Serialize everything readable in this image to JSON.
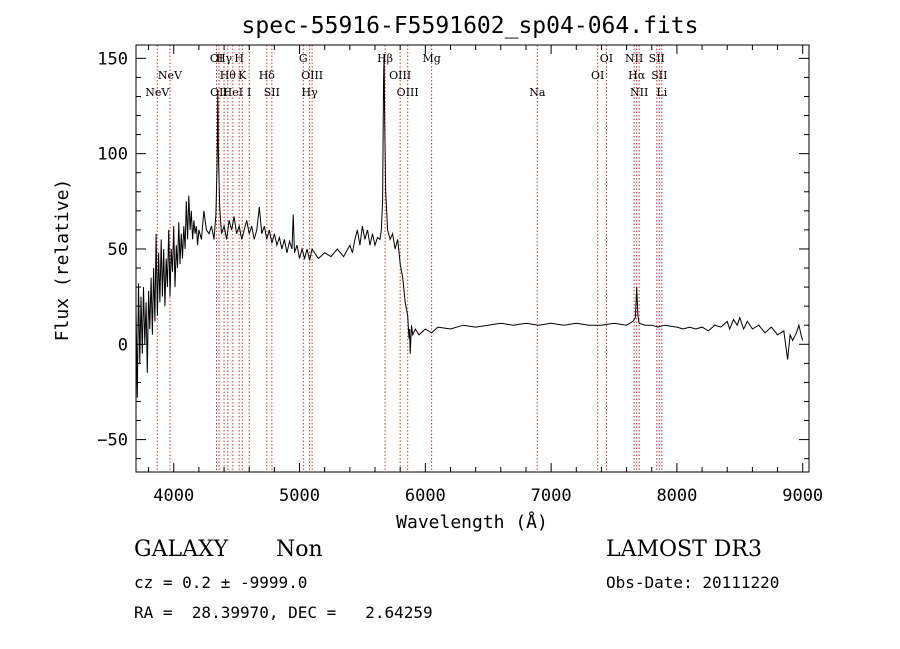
{
  "chart_data": {
    "type": "line",
    "title": "spec-55916-F5591602_sp04-064.fits",
    "xlabel": "Wavelength (Å)",
    "ylabel": "Flux (relative)",
    "xlim": [
      3700,
      9050
    ],
    "ylim": [
      -67,
      157
    ],
    "x_ticks": [
      4000,
      5000,
      6000,
      7000,
      8000,
      9000
    ],
    "y_ticks": [
      -50,
      0,
      50,
      100,
      150
    ],
    "grid": false,
    "line_color": "#000000",
    "marker_color": "#cc3333",
    "series": [
      {
        "name": "spectrum",
        "points": [
          [
            3700,
            20
          ],
          [
            3710,
            -28
          ],
          [
            3720,
            32
          ],
          [
            3730,
            -10
          ],
          [
            3740,
            25
          ],
          [
            3750,
            -5
          ],
          [
            3760,
            30
          ],
          [
            3770,
            0
          ],
          [
            3780,
            22
          ],
          [
            3790,
            -15
          ],
          [
            3800,
            28
          ],
          [
            3810,
            8
          ],
          [
            3820,
            35
          ],
          [
            3830,
            5
          ],
          [
            3840,
            40
          ],
          [
            3850,
            12
          ],
          [
            3860,
            58
          ],
          [
            3870,
            15
          ],
          [
            3880,
            48
          ],
          [
            3890,
            22
          ],
          [
            3900,
            55
          ],
          [
            3910,
            25
          ],
          [
            3920,
            50
          ],
          [
            3930,
            20
          ],
          [
            3940,
            45
          ],
          [
            3950,
            30
          ],
          [
            3960,
            60
          ],
          [
            3970,
            25
          ],
          [
            3980,
            50
          ],
          [
            3990,
            38
          ],
          [
            4000,
            62
          ],
          [
            4010,
            30
          ],
          [
            4020,
            52
          ],
          [
            4030,
            40
          ],
          [
            4040,
            64
          ],
          [
            4050,
            42
          ],
          [
            4060,
            58
          ],
          [
            4070,
            45
          ],
          [
            4080,
            62
          ],
          [
            4090,
            50
          ],
          [
            4100,
            75
          ],
          [
            4110,
            55
          ],
          [
            4120,
            78
          ],
          [
            4130,
            60
          ],
          [
            4140,
            70
          ],
          [
            4150,
            55
          ],
          [
            4160,
            65
          ],
          [
            4170,
            58
          ],
          [
            4180,
            62
          ],
          [
            4190,
            52
          ],
          [
            4200,
            60
          ],
          [
            4220,
            55
          ],
          [
            4240,
            70
          ],
          [
            4260,
            60
          ],
          [
            4280,
            58
          ],
          [
            4300,
            62
          ],
          [
            4320,
            55
          ],
          [
            4335,
            68
          ],
          [
            4345,
            95
          ],
          [
            4350,
            133
          ],
          [
            4355,
            100
          ],
          [
            4365,
            72
          ],
          [
            4380,
            58
          ],
          [
            4400,
            62
          ],
          [
            4420,
            55
          ],
          [
            4440,
            65
          ],
          [
            4460,
            60
          ],
          [
            4480,
            67
          ],
          [
            4500,
            58
          ],
          [
            4520,
            62
          ],
          [
            4540,
            55
          ],
          [
            4560,
            60
          ],
          [
            4580,
            65
          ],
          [
            4600,
            58
          ],
          [
            4620,
            62
          ],
          [
            4640,
            55
          ],
          [
            4660,
            60
          ],
          [
            4680,
            72
          ],
          [
            4700,
            58
          ],
          [
            4720,
            62
          ],
          [
            4740,
            55
          ],
          [
            4760,
            60
          ],
          [
            4780,
            53
          ],
          [
            4800,
            58
          ],
          [
            4820,
            52
          ],
          [
            4840,
            56
          ],
          [
            4860,
            50
          ],
          [
            4880,
            55
          ],
          [
            4900,
            48
          ],
          [
            4920,
            54
          ],
          [
            4940,
            50
          ],
          [
            4950,
            68
          ],
          [
            4960,
            48
          ],
          [
            4980,
            52
          ],
          [
            5000,
            45
          ],
          [
            5020,
            50
          ],
          [
            5040,
            45
          ],
          [
            5060,
            50
          ],
          [
            5080,
            44
          ],
          [
            5100,
            50
          ],
          [
            5150,
            45
          ],
          [
            5200,
            48
          ],
          [
            5250,
            46
          ],
          [
            5300,
            50
          ],
          [
            5350,
            46
          ],
          [
            5400,
            52
          ],
          [
            5420,
            48
          ],
          [
            5440,
            55
          ],
          [
            5460,
            60
          ],
          [
            5480,
            52
          ],
          [
            5500,
            62
          ],
          [
            5520,
            55
          ],
          [
            5540,
            60
          ],
          [
            5560,
            52
          ],
          [
            5580,
            58
          ],
          [
            5600,
            52
          ],
          [
            5620,
            56
          ],
          [
            5640,
            55
          ],
          [
            5650,
            60
          ],
          [
            5660,
            75
          ],
          [
            5668,
            140
          ],
          [
            5672,
            152
          ],
          [
            5676,
            120
          ],
          [
            5685,
            80
          ],
          [
            5700,
            60
          ],
          [
            5720,
            55
          ],
          [
            5740,
            58
          ],
          [
            5760,
            50
          ],
          [
            5780,
            55
          ],
          [
            5800,
            42
          ],
          [
            5820,
            35
          ],
          [
            5840,
            22
          ],
          [
            5860,
            15
          ],
          [
            5870,
            3
          ],
          [
            5875,
            8
          ],
          [
            5880,
            -5
          ],
          [
            5890,
            10
          ],
          [
            5900,
            5
          ],
          [
            5920,
            8
          ],
          [
            5950,
            5
          ],
          [
            6000,
            8
          ],
          [
            6050,
            6
          ],
          [
            6100,
            9
          ],
          [
            6200,
            8
          ],
          [
            6300,
            10
          ],
          [
            6400,
            9
          ],
          [
            6500,
            10
          ],
          [
            6600,
            11
          ],
          [
            6700,
            10
          ],
          [
            6800,
            11
          ],
          [
            6900,
            10
          ],
          [
            7000,
            11
          ],
          [
            7100,
            10
          ],
          [
            7200,
            11
          ],
          [
            7300,
            10
          ],
          [
            7400,
            10
          ],
          [
            7500,
            11
          ],
          [
            7600,
            10
          ],
          [
            7650,
            12
          ],
          [
            7670,
            14
          ],
          [
            7680,
            30
          ],
          [
            7690,
            15
          ],
          [
            7700,
            11
          ],
          [
            7750,
            10
          ],
          [
            7800,
            10
          ],
          [
            7850,
            9
          ],
          [
            7900,
            10
          ],
          [
            8000,
            9
          ],
          [
            8050,
            8
          ],
          [
            8100,
            9
          ],
          [
            8150,
            8
          ],
          [
            8200,
            9
          ],
          [
            8250,
            7
          ],
          [
            8300,
            10
          ],
          [
            8350,
            9
          ],
          [
            8400,
            12
          ],
          [
            8420,
            8
          ],
          [
            8450,
            13
          ],
          [
            8480,
            10
          ],
          [
            8500,
            14
          ],
          [
            8530,
            8
          ],
          [
            8560,
            12
          ],
          [
            8600,
            8
          ],
          [
            8650,
            10
          ],
          [
            8700,
            6
          ],
          [
            8750,
            9
          ],
          [
            8800,
            5
          ],
          [
            8850,
            7
          ],
          [
            8880,
            -8
          ],
          [
            8900,
            5
          ],
          [
            8920,
            2
          ],
          [
            8950,
            6
          ],
          [
            8970,
            10
          ],
          [
            8990,
            4
          ],
          [
            9000,
            2
          ]
        ]
      }
    ],
    "line_markers": [
      {
        "x": 3869,
        "label": "NeV",
        "row": 3
      },
      {
        "x": 3970,
        "label": "NeV",
        "row": 2
      },
      {
        "x": 4340,
        "label": "OI",
        "row": 1
      },
      {
        "x": 4360,
        "label": "OII",
        "row": 3
      },
      {
        "x": 4400,
        "label": "Hγ",
        "row": 1
      },
      {
        "x": 4430,
        "label": "Hθ",
        "row": 2
      },
      {
        "x": 4470,
        "label": "HeI",
        "row": 3
      },
      {
        "x": 4520,
        "label": "H",
        "row": 1
      },
      {
        "x": 4545,
        "label": "K",
        "row": 2
      },
      {
        "x": 4600,
        "label": "I",
        "row": 3
      },
      {
        "x": 4740,
        "label": "Hδ",
        "row": 2
      },
      {
        "x": 4780,
        "label": "SII",
        "row": 3
      },
      {
        "x": 5030,
        "label": "G",
        "row": 1
      },
      {
        "x": 5100,
        "label": "OIII",
        "row": 2
      },
      {
        "x": 5080,
        "label": "Hγ",
        "row": 3
      },
      {
        "x": 5680,
        "label": "Hβ",
        "row": 1
      },
      {
        "x": 5800,
        "label": "OIII",
        "row": 2
      },
      {
        "x": 5860,
        "label": "OIII",
        "row": 3
      },
      {
        "x": 6050,
        "label": "Mg",
        "row": 1
      },
      {
        "x": 6890,
        "label": "Na",
        "row": 3
      },
      {
        "x": 7370,
        "label": "OI",
        "row": 2
      },
      {
        "x": 7440,
        "label": "OI",
        "row": 1
      },
      {
        "x": 7660,
        "label": "NII",
        "row": 1
      },
      {
        "x": 7680,
        "label": "Hα",
        "row": 2
      },
      {
        "x": 7700,
        "label": "NII",
        "row": 3
      },
      {
        "x": 7840,
        "label": "SII",
        "row": 1
      },
      {
        "x": 7860,
        "label": "SII",
        "row": 2
      },
      {
        "x": 7880,
        "label": "Li",
        "row": 3
      }
    ]
  },
  "info": {
    "object_class": "GALAXY",
    "subclass": "Non",
    "survey": "LAMOST DR3",
    "redshift_line": "cz = 0.2 ± -9999.0",
    "obs_date_line": "Obs-Date: 20111220",
    "coords_line": "RA =  28.39970, DEC =   2.64259"
  }
}
